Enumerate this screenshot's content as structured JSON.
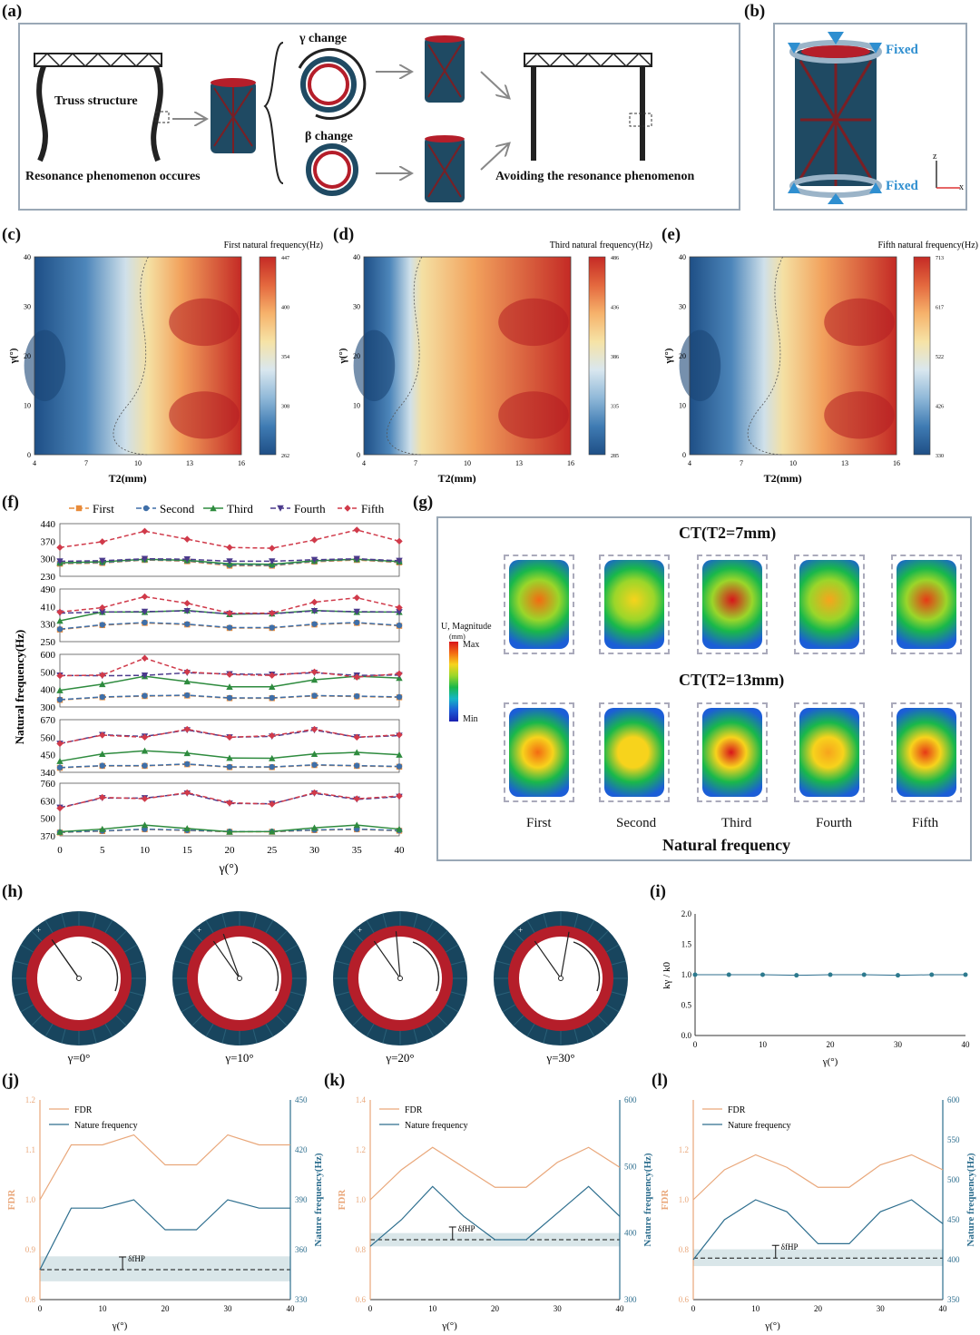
{
  "panel_labels": {
    "a": "(a)",
    "b": "(b)",
    "c": "(c)",
    "d": "(d)",
    "e": "(e)",
    "f": "(f)",
    "g": "(g)",
    "h": "(h)",
    "i": "(i)",
    "j": "(j)",
    "k": "(k)",
    "l": "(l)"
  },
  "panel_a": {
    "truss_label": "Truss structure",
    "resonance_label": "Resonance phenomenon occures",
    "gamma_change": "γ change",
    "beta_change": "β change",
    "avoid_label": "Avoiding the resonance phenomenon"
  },
  "panel_b": {
    "fixed_top": "Fixed",
    "fixed_bottom": "Fixed",
    "axis_z": "z",
    "axis_x": "x"
  },
  "heatmaps": [
    {
      "id": "c",
      "title": "First natural frequency(Hz)",
      "xlabel": "T2(mm)",
      "ylabel": "γ(°)",
      "xticks": [
        "4",
        "7",
        "10",
        "13",
        "16"
      ],
      "yticks": [
        "0",
        "10",
        "20",
        "30",
        "40"
      ],
      "cbar": [
        "447",
        "400",
        "354",
        "308",
        "262"
      ],
      "ridge": 0.55
    },
    {
      "id": "d",
      "title": "Third natural frequency(Hz)",
      "xlabel": "T2(mm)",
      "ylabel": "γ(°)",
      "xticks": [
        "4",
        "7",
        "10",
        "13",
        "16"
      ],
      "yticks": [
        "0",
        "10",
        "20",
        "30",
        "40"
      ],
      "cbar": [
        "486",
        "436",
        "386",
        "335",
        "285"
      ],
      "ridge": 0.28
    },
    {
      "id": "e",
      "title": "Fifth natural frequency(Hz)",
      "xlabel": "T2(mm)",
      "ylabel": "γ(°)",
      "xticks": [
        "4",
        "7",
        "10",
        "13",
        "16"
      ],
      "yticks": [
        "0",
        "10",
        "20",
        "30",
        "40"
      ],
      "cbar": [
        "713",
        "617",
        "522",
        "426",
        "330"
      ],
      "ridge": 0.45
    }
  ],
  "chart_data": [
    {
      "id": "f",
      "type": "line",
      "xlabel": "γ(°)",
      "ylabel": "Natural frequency(Hz)",
      "x": [
        0,
        5,
        10,
        15,
        20,
        25,
        30,
        35,
        40
      ],
      "legend": [
        "First",
        "Second",
        "Third",
        "Fourth",
        "Fifth"
      ],
      "subplots": [
        {
          "yticks": [
            "440",
            "370",
            "300",
            "230"
          ],
          "ylim": [
            230,
            440
          ],
          "series": [
            {
              "name": "First",
              "values": [
                280,
                283,
                295,
                290,
                272,
                272,
                288,
                295,
                285
              ]
            },
            {
              "name": "Second",
              "values": [
                282,
                285,
                296,
                292,
                275,
                274,
                290,
                297,
                287
              ]
            },
            {
              "name": "Third",
              "values": [
                284,
                288,
                298,
                294,
                280,
                278,
                292,
                298,
                289
              ]
            },
            {
              "name": "Fourth",
              "values": [
                290,
                292,
                300,
                298,
                290,
                290,
                296,
                300,
                292
              ]
            },
            {
              "name": "Fifth",
              "values": [
                345,
                368,
                410,
                378,
                345,
                342,
                375,
                415,
                370
              ]
            }
          ]
        },
        {
          "yticks": [
            "490",
            "410",
            "330",
            "250"
          ],
          "ylim": [
            250,
            490
          ],
          "series": [
            {
              "name": "First",
              "values": [
                305,
                325,
                335,
                328,
                312,
                312,
                328,
                335,
                322
              ]
            },
            {
              "name": "Second",
              "values": [
                307,
                327,
                337,
                330,
                314,
                314,
                330,
                337,
                324
              ]
            },
            {
              "name": "Third",
              "values": [
                345,
                385,
                385,
                392,
                375,
                378,
                392,
                385,
                385
              ]
            },
            {
              "name": "Fourth",
              "values": [
                380,
                385,
                387,
                390,
                377,
                377,
                390,
                387,
                385
              ]
            },
            {
              "name": "Fifth",
              "values": [
                385,
                405,
                455,
                425,
                380,
                380,
                430,
                450,
                405
              ]
            }
          ]
        },
        {
          "yticks": [
            "600",
            "500",
            "400",
            "300"
          ],
          "ylim": [
            300,
            600
          ],
          "series": [
            {
              "name": "First",
              "values": [
                340,
                355,
                362,
                365,
                350,
                350,
                363,
                360,
                355
              ]
            },
            {
              "name": "Second",
              "values": [
                342,
                357,
                364,
                367,
                352,
                352,
                365,
                362,
                357
              ]
            },
            {
              "name": "Third",
              "values": [
                395,
                430,
                475,
                445,
                415,
                415,
                455,
                475,
                465
              ]
            },
            {
              "name": "Fourth",
              "values": [
                480,
                478,
                480,
                495,
                488,
                485,
                495,
                480,
                482
              ]
            },
            {
              "name": "Fifth",
              "values": [
                478,
                482,
                578,
                500,
                485,
                480,
                500,
                470,
                490
              ]
            }
          ]
        },
        {
          "yticks": [
            "670",
            "560",
            "450",
            "340"
          ],
          "ylim": [
            340,
            670
          ],
          "series": [
            {
              "name": "First",
              "values": [
                368,
                380,
                380,
                390,
                372,
                372,
                385,
                380,
                375
              ]
            },
            {
              "name": "Second",
              "values": [
                370,
                382,
                382,
                392,
                374,
                374,
                387,
                382,
                377
              ]
            },
            {
              "name": "Third",
              "values": [
                410,
                455,
                475,
                460,
                430,
                428,
                455,
                465,
                450
              ]
            },
            {
              "name": "Fourth",
              "values": [
                520,
                575,
                565,
                605,
                560,
                565,
                605,
                560,
                570
              ]
            },
            {
              "name": "Fifth",
              "values": [
                520,
                573,
                560,
                610,
                560,
                570,
                610,
                560,
                575
              ]
            }
          ]
        },
        {
          "yticks": [
            "760",
            "630",
            "500",
            "370"
          ],
          "ylim": [
            370,
            760
          ],
          "series": [
            {
              "name": "First",
              "values": [
                395,
                405,
                418,
                410,
                400,
                400,
                412,
                418,
                408
              ]
            },
            {
              "name": "Second",
              "values": [
                397,
                407,
                420,
                412,
                402,
                402,
                414,
                420,
                410
              ]
            },
            {
              "name": "Third",
              "values": [
                400,
                420,
                450,
                425,
                400,
                402,
                430,
                450,
                420
              ]
            },
            {
              "name": "Fourth",
              "values": [
                580,
                650,
                650,
                685,
                610,
                608,
                685,
                640,
                660
              ]
            },
            {
              "name": "Fifth",
              "values": [
                575,
                655,
                645,
                690,
                615,
                605,
                690,
                645,
                665
              ]
            }
          ]
        }
      ],
      "xticks": [
        "0",
        "5",
        "10",
        "15",
        "20",
        "25",
        "30",
        "35",
        "40"
      ]
    },
    {
      "id": "i",
      "type": "line",
      "xlabel": "γ(°)",
      "ylabel": "kγ / k0",
      "x": [
        0,
        5,
        10,
        15,
        20,
        25,
        30,
        35,
        40
      ],
      "values": [
        1.0,
        1.0,
        1.0,
        0.99,
        1.0,
        1.0,
        0.99,
        1.0,
        1.0
      ],
      "ylim": [
        0,
        2
      ],
      "yticks": [
        "0.0",
        "0.5",
        "1.0",
        "1.5",
        "2.0"
      ],
      "xticks": [
        "0",
        "10",
        "20",
        "30",
        "40"
      ]
    },
    {
      "id": "j",
      "type": "line",
      "xlabel": "γ(°)",
      "ylabel_left": "FDR",
      "ylabel_right": "Nature frequency(Hz)",
      "x": [
        0,
        5,
        10,
        15,
        20,
        25,
        30,
        35,
        40
      ],
      "series": [
        {
          "name": "FDR",
          "axis": "left",
          "values": [
            1.0,
            1.11,
            1.11,
            1.13,
            1.07,
            1.07,
            1.13,
            1.11,
            1.11
          ]
        },
        {
          "name": "Nature frequency",
          "axis": "right",
          "values": [
            348,
            385,
            385,
            390,
            372,
            372,
            390,
            385,
            385
          ]
        }
      ],
      "ylim_left": [
        0.8,
        1.2
      ],
      "ylim_right": [
        330,
        450
      ],
      "yticks_left": [
        "0.8",
        "0.9",
        "1.0",
        "1.1",
        "1.2"
      ],
      "yticks_right": [
        "330",
        "360",
        "390",
        "420",
        "450"
      ],
      "xticks": [
        "0",
        "10",
        "20",
        "30",
        "40"
      ],
      "dashed_ref": 348,
      "band": [
        341,
        356
      ],
      "annotation": "δfHP"
    },
    {
      "id": "k",
      "type": "line",
      "xlabel": "γ(°)",
      "ylabel_left": "FDR",
      "ylabel_right": "Nature frequency(Hz)",
      "x": [
        0,
        5,
        10,
        15,
        20,
        25,
        30,
        35,
        40
      ],
      "series": [
        {
          "name": "FDR",
          "axis": "left",
          "values": [
            1.0,
            1.12,
            1.21,
            1.13,
            1.05,
            1.05,
            1.15,
            1.21,
            1.13
          ]
        },
        {
          "name": "Nature frequency",
          "axis": "right",
          "values": [
            380,
            420,
            470,
            425,
            390,
            390,
            430,
            470,
            425
          ]
        }
      ],
      "ylim_left": [
        0.6,
        1.4
      ],
      "ylim_right": [
        300,
        600
      ],
      "yticks_left": [
        "0.6",
        "0.8",
        "1.0",
        "1.2",
        "1.4"
      ],
      "yticks_right": [
        "300",
        "400",
        "500",
        "600"
      ],
      "xticks": [
        "0",
        "10",
        "20",
        "30",
        "40"
      ],
      "dashed_ref": 390,
      "band": [
        380,
        400
      ],
      "annotation": "δfHP"
    },
    {
      "id": "l",
      "type": "line",
      "xlabel": "γ(°)",
      "ylabel_left": "FDR",
      "ylabel_right": "Nature frequency(Hz)",
      "x": [
        0,
        5,
        10,
        15,
        20,
        25,
        30,
        35,
        40
      ],
      "series": [
        {
          "name": "FDR",
          "axis": "left",
          "values": [
            1.0,
            1.12,
            1.18,
            1.13,
            1.05,
            1.05,
            1.14,
            1.18,
            1.12
          ]
        },
        {
          "name": "Nature frequency",
          "axis": "right",
          "values": [
            400,
            450,
            475,
            460,
            420,
            420,
            460,
            475,
            445
          ]
        }
      ],
      "ylim_left": [
        0.6,
        1.4
      ],
      "ylim_right": [
        350,
        600
      ],
      "yticks_left": [
        "0.6",
        "0.8",
        "1.0",
        "1.2"
      ],
      "yticks_right": [
        "350",
        "400",
        "450",
        "500",
        "550",
        "600"
      ],
      "xticks": [
        "0",
        "10",
        "20",
        "30",
        "40"
      ],
      "dashed_ref": 402,
      "band": [
        392,
        413
      ],
      "annotation": "δfHP"
    }
  ],
  "panel_g": {
    "title_top": "CT(T2=7mm)",
    "title_bottom": "CT(T2=13mm)",
    "legend_title": "U, Magnitude",
    "legend_unit": "(mm)",
    "legend_max": "Max",
    "legend_min": "Min",
    "modes": [
      "First",
      "Second",
      "Third",
      "Fourth",
      "Fifth"
    ],
    "footer": "Natural frequency"
  },
  "panel_h": {
    "labels": [
      "γ=0°",
      "γ=10°",
      "γ=20°",
      "γ=30°"
    ],
    "angles": [
      0,
      10,
      20,
      30
    ]
  },
  "colors": {
    "first": "#e88b3a",
    "second": "#3f6fa8",
    "third": "#2e8b3e",
    "fourth": "#4b3a8c",
    "fifth": "#d03a4a",
    "fdr": "#e9a77a",
    "freq": "#2d6e8e",
    "ring_outer": "#18455e",
    "ring_inner": "#b51e2a"
  }
}
